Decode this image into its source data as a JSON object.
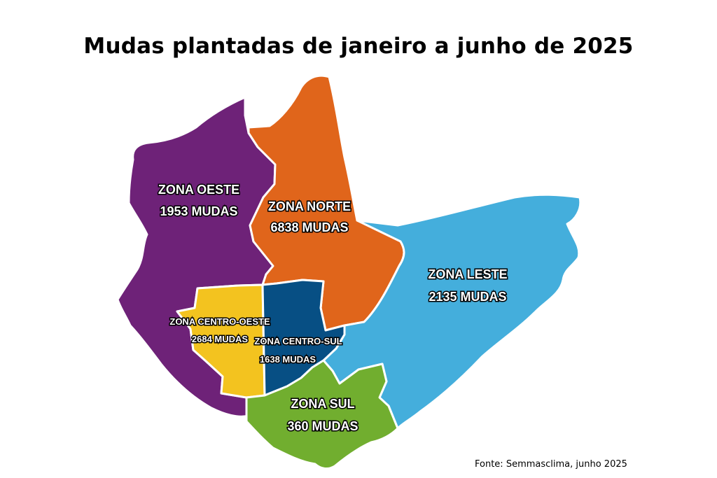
{
  "title": "Mudas plantadas de janeiro a junho de 2025",
  "source": "Fonte: Semmasclima, junho 2025",
  "zones": [
    {
      "name": "ZONA OESTE",
      "value": "1953 MUDAS",
      "color": "#6e2278"
    },
    {
      "name": "ZONA NORTE",
      "value": "6838 MUDAS",
      "color": "#e0651b"
    },
    {
      "name": "ZONA LESTE",
      "value": "2135 MUDAS",
      "color": "#44aedc"
    },
    {
      "name": "ZONA CENTRO-OESTE",
      "value": "2684 MUDAS",
      "color": "#f3c31f"
    },
    {
      "name": "ZONA CENTRO-SUL",
      "value": "1638 MUDAS",
      "color": "#074f84"
    },
    {
      "name": "ZONA SUL",
      "value": "360 MUDAS",
      "color": "#71ae2f"
    }
  ]
}
